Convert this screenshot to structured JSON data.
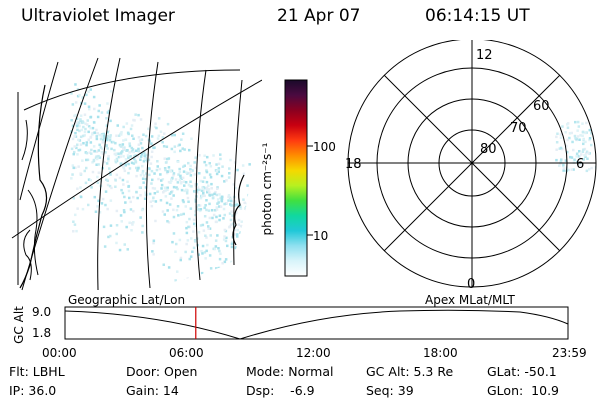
{
  "header": {
    "instrument": "Ultraviolet Imager",
    "date": "21 Apr 07",
    "time": "06:14:15 UT"
  },
  "colorbar": {
    "label": "photon cm⁻²s⁻¹",
    "ticks": [
      "100",
      "10"
    ],
    "colors": [
      "#1a0a2a",
      "#4a0a40",
      "#8a0020",
      "#c80010",
      "#ff3a10",
      "#ff8c00",
      "#f5d800",
      "#b8f020",
      "#40e040",
      "#10d8a0",
      "#20c8d8",
      "#90e0f0",
      "#d8f4fa",
      "#ffffff"
    ]
  },
  "polar_plot": {
    "mlt_labels": {
      "top": "12",
      "left": "18",
      "right": "6",
      "bottom": "0"
    },
    "lat_labels": [
      "60",
      "70",
      "80"
    ]
  },
  "timeline": {
    "left_label": "Geographic Lat/Lon",
    "right_label": "Apex MLat/MLT",
    "axis_label": "GC Alt",
    "y_ticks": [
      "9.0",
      "1.8"
    ],
    "x_ticks": [
      "00:00",
      "06:00",
      "12:00",
      "18:00",
      "23:59"
    ],
    "current_time_fraction": 0.26
  },
  "status": {
    "filter": "Flt: LBHL",
    "ip": "IP: 36.0",
    "door": "Door: Open",
    "gain": "Gain: 14",
    "mode": "Mode: Normal",
    "dsp": "Dsp:    -6.9",
    "gc_alt": "GC Alt: 5.3 Re",
    "seq": "Seq: 39",
    "glat": "GLat: -50.1",
    "glon": "GLon:  10.9"
  }
}
